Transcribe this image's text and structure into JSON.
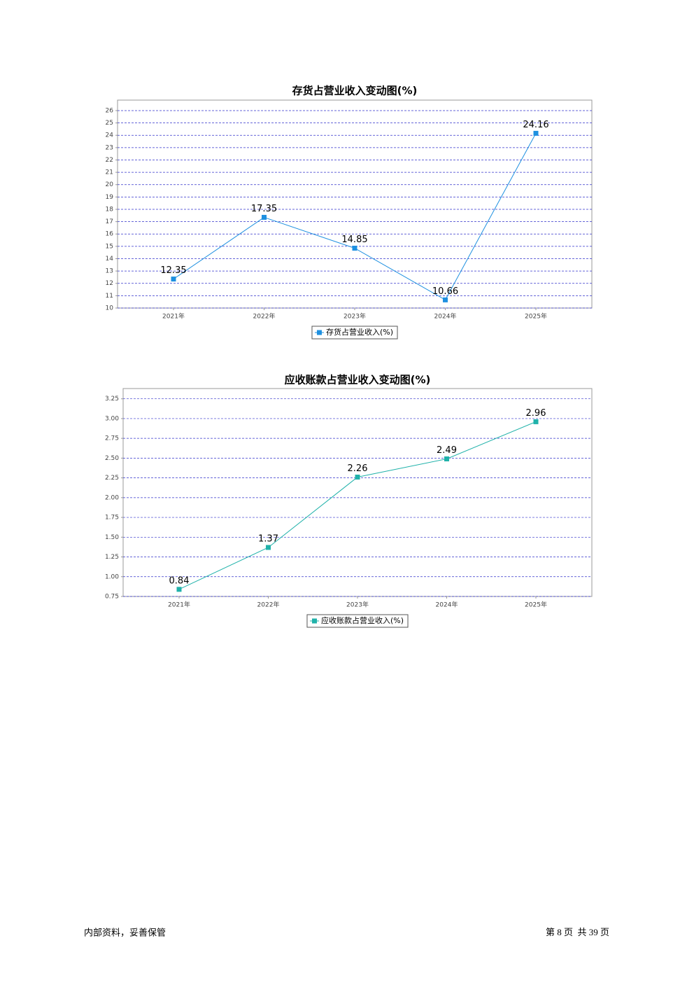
{
  "chart_data": [
    {
      "type": "line",
      "title": "存货占营业收入变动图(%)",
      "categories": [
        "2021年",
        "2022年",
        "2023年",
        "2024年",
        "2025年"
      ],
      "series": [
        {
          "name": "存货占营业收入(%)",
          "color": "#1e90e0",
          "values": [
            12.35,
            17.35,
            14.85,
            10.66,
            24.16
          ]
        }
      ],
      "ylim": [
        10,
        26.85
      ],
      "yticks": [
        10,
        11,
        12,
        13,
        14,
        15,
        16,
        17,
        18,
        19,
        20,
        21,
        22,
        23,
        24,
        25,
        26
      ],
      "grid": true,
      "legend": "bottom"
    },
    {
      "type": "line",
      "title": "应收账款占营业收入变动图(%)",
      "categories": [
        "2021年",
        "2022年",
        "2023年",
        "2024年",
        "2025年"
      ],
      "series": [
        {
          "name": "应收账款占营业收入(%)",
          "color": "#20b2aa",
          "values": [
            0.84,
            1.37,
            2.26,
            2.49,
            2.96
          ]
        }
      ],
      "ylim": [
        0.75,
        3.38
      ],
      "yticks": [
        0.75,
        {
          "value": 1,
          "label": "1.00"
        },
        1.25,
        {
          "value": 1.5,
          "label": "1.50"
        },
        1.75,
        {
          "value": 2,
          "label": "2.00"
        },
        2.25,
        {
          "value": 2.5,
          "label": "2.50"
        },
        2.75,
        {
          "value": 3,
          "label": "3.00"
        },
        3.25
      ],
      "grid": true,
      "legend": "bottom"
    }
  ],
  "footer": {
    "left": "内部资料，妥善保管",
    "right": "第 8 页  共 39 页"
  }
}
